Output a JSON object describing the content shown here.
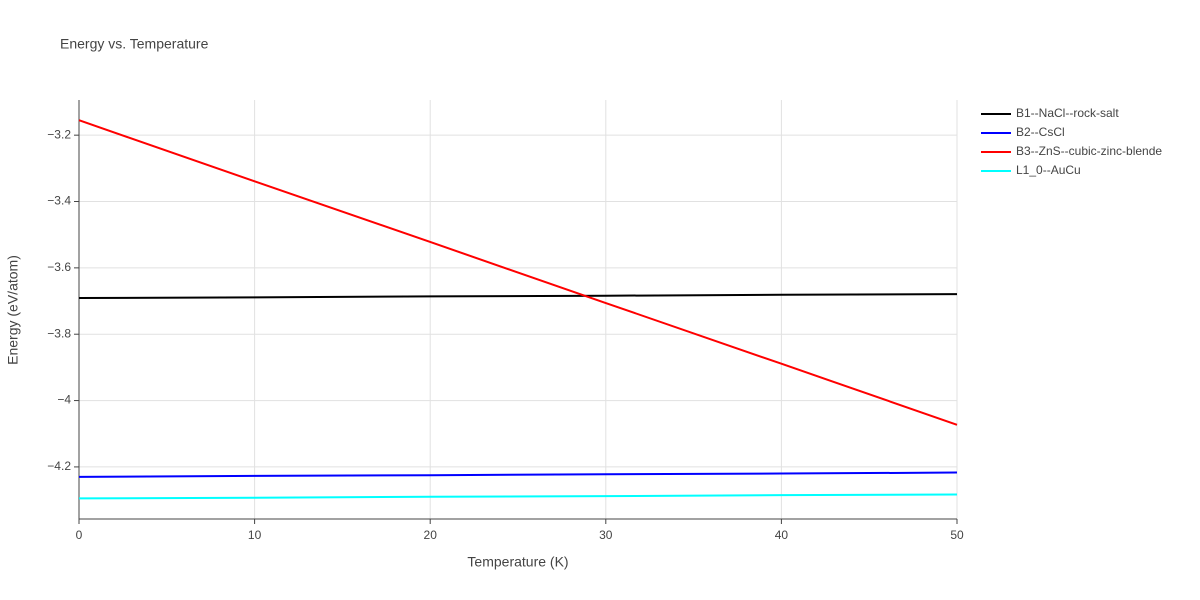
{
  "chart_data": {
    "type": "line",
    "title": "Energy vs. Temperature",
    "x_label": "Temperature (K)",
    "y_label": "Energy (eV/atom)",
    "x": [
      0,
      10,
      20,
      30,
      40,
      50
    ],
    "series": [
      {
        "name": "B1--NaCl--rock-salt",
        "color": "#000000",
        "values": [
          -3.691,
          -3.689,
          -3.686,
          -3.684,
          -3.681,
          -3.679
        ]
      },
      {
        "name": "B2--CsCl",
        "color": "#0000ff",
        "values": [
          -4.23,
          -4.227,
          -4.225,
          -4.222,
          -4.22,
          -4.217
        ]
      },
      {
        "name": "B3--ZnS--cubic-zinc-blende",
        "color": "#ff0000",
        "values": [
          -3.155,
          -3.339,
          -3.522,
          -3.706,
          -3.889,
          -4.073
        ]
      },
      {
        "name": "L1_0--AuCu",
        "color": "#00ffff",
        "values": [
          -4.295,
          -4.293,
          -4.29,
          -4.288,
          -4.285,
          -4.283
        ]
      }
    ],
    "xlim": [
      0,
      50
    ],
    "xticks": [
      0,
      10,
      20,
      30,
      40,
      50
    ],
    "ylim": [
      -4.357,
      -3.094
    ],
    "yticks": [
      {
        "value": -4.2,
        "label": "−4.2"
      },
      {
        "value": -4,
        "label": "−4"
      },
      {
        "value": -3.8,
        "label": "−3.8"
      },
      {
        "value": -3.6,
        "label": "−3.6"
      },
      {
        "value": -3.4,
        "label": "−3.4"
      },
      {
        "value": -3.2,
        "label": "−3.2"
      }
    ],
    "grid": true,
    "legend": "right"
  }
}
